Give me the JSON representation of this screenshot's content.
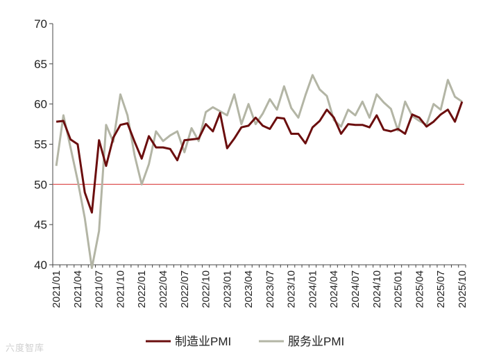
{
  "chart_data": {
    "type": "line",
    "x": [
      "2021/01",
      "2021/02",
      "2021/03",
      "2021/04",
      "2021/05",
      "2021/06",
      "2021/07",
      "2021/08",
      "2021/09",
      "2021/10",
      "2021/11",
      "2021/12",
      "2022/01",
      "2022/02",
      "2022/03",
      "2022/04",
      "2022/05",
      "2022/06",
      "2022/07",
      "2022/08",
      "2022/09",
      "2022/10",
      "2022/11",
      "2022/12",
      "2023/01",
      "2023/02",
      "2023/03",
      "2023/04",
      "2023/05",
      "2023/06",
      "2023/07",
      "2023/08",
      "2023/09",
      "2023/10",
      "2023/11",
      "2023/12",
      "2024/01",
      "2024/02",
      "2024/03",
      "2024/04",
      "2024/05",
      "2024/06",
      "2024/07",
      "2024/08",
      "2024/09",
      "2024/10",
      "2024/11",
      "2024/12",
      "2025/01",
      "2025/02",
      "2025/03",
      "2025/04",
      "2025/05",
      "2025/06",
      "2025/07",
      "2025/08",
      "2025/09",
      "2025/10"
    ],
    "x_tick_labels": [
      "2021/01",
      "2021/04",
      "2021/07",
      "2021/10",
      "2022/01",
      "2022/04",
      "2022/07",
      "2022/10",
      "2023/01",
      "2023/04",
      "2023/07",
      "2023/10",
      "2024/01",
      "2024/04",
      "2024/07",
      "2024/10",
      "2025/01",
      "2025/04",
      "2025/07",
      "2025/10"
    ],
    "y_ticks": [
      40,
      45,
      50,
      55,
      60,
      65,
      70
    ],
    "ylim": [
      40,
      70
    ],
    "reference_line": {
      "y": 50,
      "color": "#e06060"
    },
    "series": [
      {
        "name": "制造业PMI",
        "color": "#6b0e0e",
        "values": [
          57.8,
          57.9,
          55.6,
          55.0,
          49.0,
          46.5,
          55.5,
          52.3,
          55.8,
          57.4,
          57.6,
          55.3,
          53.2,
          56.0,
          54.6,
          54.6,
          54.4,
          53.0,
          55.5,
          55.6,
          55.7,
          57.5,
          56.6,
          58.9,
          54.5,
          55.7,
          57.1,
          57.3,
          58.3,
          57.3,
          56.9,
          58.3,
          58.2,
          56.3,
          56.3,
          55.1,
          57.1,
          57.9,
          59.3,
          58.3,
          56.3,
          57.5,
          57.4,
          57.4,
          57.1,
          58.6,
          56.8,
          56.6,
          56.9,
          56.3,
          58.7,
          58.3,
          57.2,
          57.8,
          58.7,
          59.3,
          57.8,
          60.3
        ]
      },
      {
        "name": "服务业PMI",
        "color": "#b3b5a5",
        "values": [
          52.3,
          58.6,
          54.6,
          50.5,
          45.8,
          39.6,
          44.2,
          57.4,
          55.3,
          61.2,
          58.6,
          53.6,
          50.0,
          52.5,
          56.6,
          55.4,
          56.1,
          56.6,
          54.0,
          57.0,
          55.4,
          59.0,
          59.6,
          59.1,
          58.6,
          61.2,
          57.5,
          60.0,
          57.5,
          58.8,
          60.6,
          59.3,
          62.2,
          59.5,
          58.3,
          61.1,
          63.6,
          61.8,
          61.0,
          58.0,
          57.2,
          59.3,
          58.6,
          60.3,
          58.3,
          61.2,
          60.2,
          59.4,
          56.7,
          60.3,
          58.5,
          57.9,
          57.4,
          60.0,
          59.3,
          63.0,
          60.9,
          60.3
        ]
      }
    ],
    "legend_position": "bottom-center"
  },
  "watermark": "六度智库"
}
